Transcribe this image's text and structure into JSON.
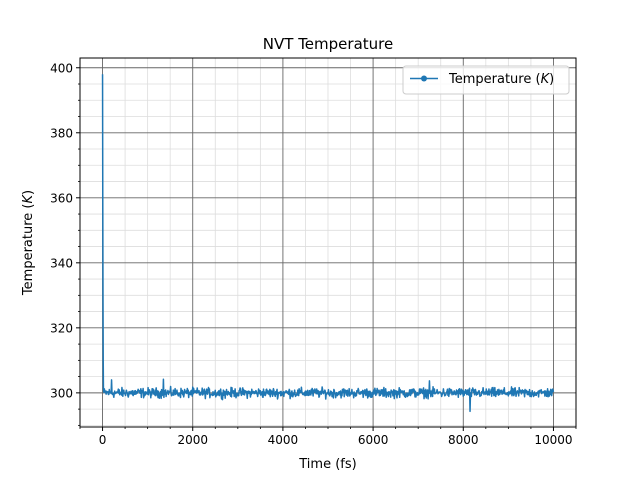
{
  "chart_data": {
    "type": "line",
    "title": "NVT Temperature",
    "xlabel": "Time (fs)",
    "ylabel_main": "Temperature (",
    "ylabel_unit": "K",
    "ylabel_close": ")",
    "xlim": [
      -500,
      10500
    ],
    "ylim": [
      289.5,
      403
    ],
    "x_ticks": [
      0,
      2000,
      4000,
      6000,
      8000,
      10000
    ],
    "x_tick_labels": [
      "0",
      "2000",
      "4000",
      "6000",
      "8000",
      "10000"
    ],
    "y_ticks": [
      300,
      320,
      340,
      360,
      380,
      400
    ],
    "y_tick_labels": [
      "300",
      "320",
      "340",
      "360",
      "380",
      "400"
    ],
    "grid": true,
    "minor_grid": true,
    "legend_position": "top-right",
    "series": [
      {
        "name_main": "Temperature (",
        "name_unit": "K",
        "name_close": ")",
        "color": "#1f77b4",
        "x_start": 0,
        "x_end": 10000,
        "x_step": 10,
        "initial_points": [
          [
            0,
            398
          ],
          [
            5,
            360
          ],
          [
            10,
            330
          ],
          [
            15,
            310
          ],
          [
            20,
            301
          ]
        ],
        "steady_mean": 300,
        "noise_amplitude": 2.2,
        "notable_points": [
          [
            8150,
            294.3
          ],
          [
            1350,
            304.2
          ],
          [
            200,
            304.0
          ],
          [
            7250,
            303.7
          ]
        ]
      }
    ]
  }
}
